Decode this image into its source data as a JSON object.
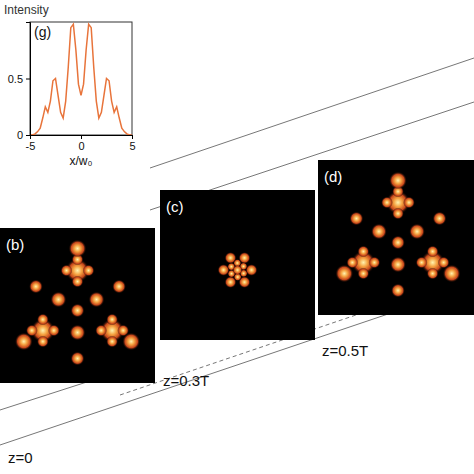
{
  "chart_data": {
    "type": "line",
    "title": "(g)",
    "x_label": "x/w₀",
    "y_label": "Intensity",
    "x": [
      -5,
      -4.75,
      -4.5,
      -4.25,
      -4,
      -3.75,
      -3.5,
      -3.25,
      -3,
      -2.75,
      -2.5,
      -2.25,
      -2,
      -1.75,
      -1.5,
      -1.25,
      -1,
      -0.75,
      -0.5,
      -0.25,
      0,
      0.25,
      0.5,
      0.75,
      1,
      1.25,
      1.5,
      1.75,
      2,
      2.25,
      2.5,
      2.75,
      3,
      3.25,
      3.5,
      3.75,
      4,
      4.25,
      4.5,
      4.75,
      5
    ],
    "values": [
      0,
      0,
      0.01,
      0.03,
      0.06,
      0.15,
      0.25,
      0.2,
      0.3,
      0.48,
      0.5,
      0.35,
      0.2,
      0.15,
      0.3,
      0.6,
      0.95,
      0.98,
      0.75,
      0.45,
      0.35,
      0.45,
      0.75,
      0.98,
      0.95,
      0.6,
      0.3,
      0.15,
      0.2,
      0.35,
      0.5,
      0.48,
      0.3,
      0.2,
      0.25,
      0.15,
      0.06,
      0.03,
      0.01,
      0,
      0
    ],
    "color": "#e8743b",
    "xlim": [
      -5,
      5
    ],
    "xticks": [
      -5,
      0,
      5
    ],
    "ylim": [
      0,
      1
    ],
    "yticks": [
      0,
      0.5
    ],
    "grid": false,
    "annotations": [
      "(b)",
      "(c)",
      "(d)",
      "z=0",
      "z=0.3T",
      "z=0.5T"
    ]
  }
}
